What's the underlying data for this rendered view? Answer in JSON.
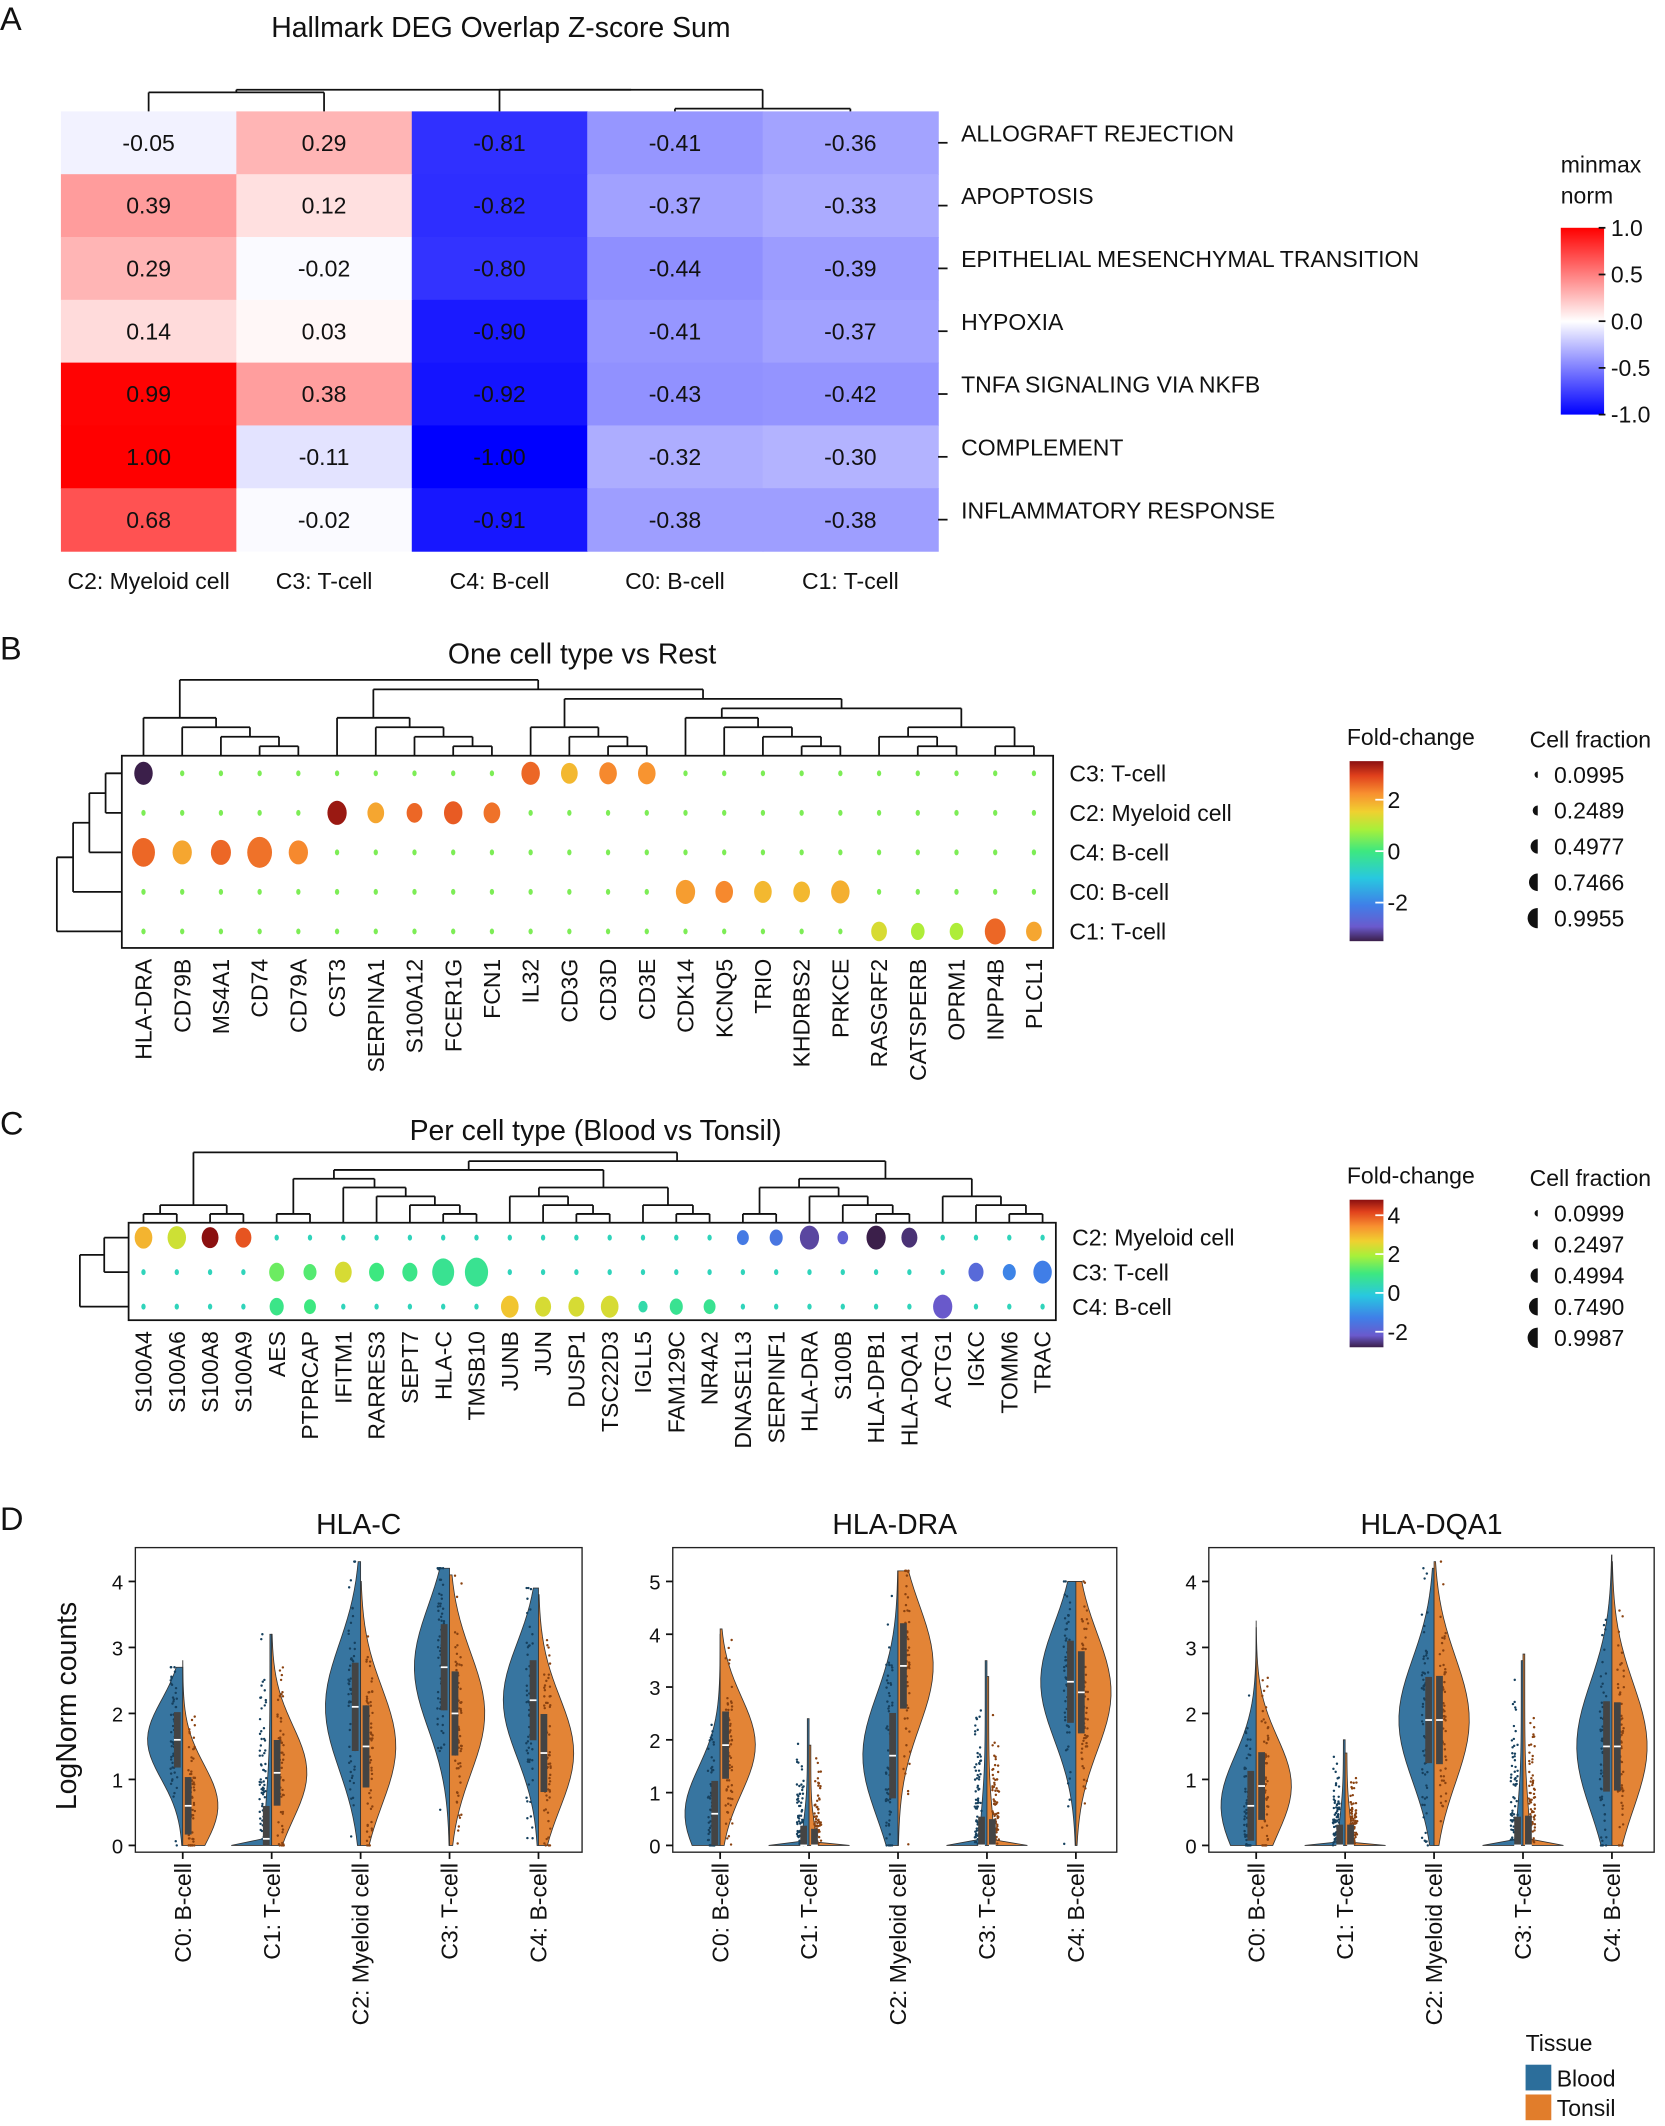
{
  "panel_letters": [
    "A",
    "B",
    "C",
    "D"
  ],
  "chart_data": [
    {
      "type": "heatmap",
      "title": "Hallmark DEG  Overlap Z-score Sum",
      "columns": [
        "C2:  Myeloid cell",
        "C3: T-cell",
        "C4: B-cell",
        "C0: B-cell",
        "C1: T-cell"
      ],
      "rows": [
        "ALLOGRAFT REJECTION",
        "APOPTOSIS",
        "EPITHELIAL MESENCHYMAL TRANSITION",
        "HYPOXIA",
        "TNFA SIGNALING VIA NKFB",
        "COMPLEMENT",
        "INFLAMMATORY RESPONSE"
      ],
      "values": [
        [
          "-0.05",
          "0.29",
          "-0.81",
          "-0.41",
          "-0.36"
        ],
        [
          "0.39",
          "0.12",
          "-0.82",
          "-0.37",
          "-0.33"
        ],
        [
          "0.29",
          "-0.02",
          "-0.80",
          "-0.44",
          "-0.39"
        ],
        [
          "0.14",
          "0.03",
          "-0.90",
          "-0.41",
          "-0.37"
        ],
        [
          "0.99",
          "0.38",
          "-0.92",
          "-0.43",
          "-0.42"
        ],
        [
          "1.00",
          "-0.11",
          "-1.00",
          "-0.32",
          "-0.30"
        ],
        [
          "0.68",
          "-0.02",
          "-0.91",
          "-0.38",
          "-0.38"
        ]
      ],
      "colorbar": {
        "title_lines": [
          "minmax",
          "norm"
        ],
        "ticks": [
          "1.0",
          "0.5",
          "0.0",
          "-0.5",
          "-1.0"
        ],
        "range": [
          -1,
          1
        ],
        "low_color": "#0000ff",
        "mid_color": "#ffffff",
        "high_color": "#ff0000"
      }
    },
    {
      "type": "dotplot",
      "title": "One cell type vs Rest",
      "genes": [
        "HLA-DRA",
        "CD79B",
        "MS4A1",
        "CD74",
        "CD79A",
        "CST3",
        "SERPINA1",
        "S100A12",
        "FCER1G",
        "FCN1",
        "IL32",
        "CD3G",
        "CD3D",
        "CD3E",
        "CDK14",
        "KCNQ5",
        "TRIO",
        "KHDRBS2",
        "PRKCE",
        "RASGRF2",
        "CATSPERB",
        "OPRM1",
        "INPP4B",
        "PLCL1"
      ],
      "groups": [
        "C3:  T-cell",
        "C2:  Myeloid cell",
        "C4:  B-cell",
        "C0:  B-cell",
        "C1:  T-cell"
      ],
      "background": {
        "fold_change": 0.5,
        "fraction": 0.03
      },
      "highlights": [
        {
          "group": 0,
          "gene": "HLA-DRA",
          "fold_change": -3.5,
          "fraction": 0.55
        },
        {
          "group": 0,
          "gene": "IL32",
          "fold_change": 2.6,
          "fraction": 0.55
        },
        {
          "group": 0,
          "gene": "CD3G",
          "fold_change": 1.8,
          "fraction": 0.45
        },
        {
          "group": 0,
          "gene": "CD3D",
          "fold_change": 2.3,
          "fraction": 0.5
        },
        {
          "group": 0,
          "gene": "CD3E",
          "fold_change": 2.2,
          "fraction": 0.5
        },
        {
          "group": 1,
          "gene": "CST3",
          "fold_change": 3.4,
          "fraction": 0.6
        },
        {
          "group": 1,
          "gene": "SERPINA1",
          "fold_change": 2.0,
          "fraction": 0.45
        },
        {
          "group": 1,
          "gene": "S100A12",
          "fold_change": 2.6,
          "fraction": 0.4
        },
        {
          "group": 1,
          "gene": "FCER1G",
          "fold_change": 2.7,
          "fraction": 0.55
        },
        {
          "group": 1,
          "gene": "FCN1",
          "fold_change": 2.5,
          "fraction": 0.45
        },
        {
          "group": 2,
          "gene": "HLA-DRA",
          "fold_change": 2.6,
          "fraction": 0.85
        },
        {
          "group": 2,
          "gene": "CD79B",
          "fold_change": 2.0,
          "fraction": 0.6
        },
        {
          "group": 2,
          "gene": "MS4A1",
          "fold_change": 2.6,
          "fraction": 0.65
        },
        {
          "group": 2,
          "gene": "CD74",
          "fold_change": 2.5,
          "fraction": 0.99
        },
        {
          "group": 2,
          "gene": "CD79A",
          "fold_change": 2.3,
          "fraction": 0.6
        },
        {
          "group": 3,
          "gene": "CDK14",
          "fold_change": 2.1,
          "fraction": 0.6
        },
        {
          "group": 3,
          "gene": "KCNQ5",
          "fold_change": 2.3,
          "fraction": 0.5
        },
        {
          "group": 3,
          "gene": "TRIO",
          "fold_change": 1.8,
          "fraction": 0.5
        },
        {
          "group": 3,
          "gene": "KHDRBS2",
          "fold_change": 1.8,
          "fraction": 0.45
        },
        {
          "group": 3,
          "gene": "PRKCE",
          "fold_change": 1.9,
          "fraction": 0.55
        },
        {
          "group": 4,
          "gene": "RASGRF2",
          "fold_change": 1.3,
          "fraction": 0.4
        },
        {
          "group": 4,
          "gene": "CATSPERB",
          "fold_change": 0.9,
          "fraction": 0.3
        },
        {
          "group": 4,
          "gene": "OPRM1",
          "fold_change": 0.9,
          "fraction": 0.3
        },
        {
          "group": 4,
          "gene": "INPP4B",
          "fold_change": 2.6,
          "fraction": 0.7
        },
        {
          "group": 4,
          "gene": "PLCL1",
          "fold_change": 2.0,
          "fraction": 0.4
        }
      ],
      "colorbar": {
        "title": "Fold-change",
        "ticks": [
          "2",
          "0",
          "-2"
        ],
        "range": [
          -3.5,
          3.5
        ]
      },
      "size_legend": {
        "title": "Cell fraction",
        "entries": [
          "0.0995",
          "0.2489",
          "0.4977",
          "0.7466",
          "0.9955"
        ]
      }
    },
    {
      "type": "dotplot",
      "title": "Per cell type (Blood vs Tonsil)",
      "genes": [
        "S100A4",
        "S100A6",
        "S100A8",
        "S100A9",
        "AES",
        "PTPRCAP",
        "IFITM1",
        "RARRES3",
        "SEPT7",
        "HLA-C",
        "TMSB10",
        "JUNB",
        "JUN",
        "DUSP1",
        "TSC22D3",
        "IGLL5",
        "FAM129C",
        "NR4A2",
        "DNASE1L3",
        "SERPINF1",
        "HLA-DRA",
        "S100B",
        "HLA-DPB1",
        "HLA-DQA1",
        "ACTG1",
        "IGKC",
        "TOMM6",
        "TRAC"
      ],
      "groups": [
        "C2: Myeloid cell",
        "C3: T-cell",
        "C4:  B-cell"
      ],
      "background": {
        "fold_change": 0.3,
        "fraction": 0.03
      },
      "highlights": [
        {
          "group": 0,
          "gene": "S100A4",
          "fold_change": 3.0,
          "fraction": 0.55
        },
        {
          "group": 0,
          "gene": "S100A6",
          "fold_change": 2.3,
          "fraction": 0.6
        },
        {
          "group": 0,
          "gene": "S100A8",
          "fold_change": 4.8,
          "fraction": 0.5
        },
        {
          "group": 0,
          "gene": "S100A9",
          "fold_change": 4.0,
          "fraction": 0.45
        },
        {
          "group": 0,
          "gene": "DNASE1L3",
          "fold_change": -1.4,
          "fraction": 0.25
        },
        {
          "group": 0,
          "gene": "SERPINF1",
          "fold_change": -1.5,
          "fraction": 0.3
        },
        {
          "group": 0,
          "gene": "HLA-DRA",
          "fold_change": -2.4,
          "fraction": 0.65
        },
        {
          "group": 0,
          "gene": "S100B",
          "fold_change": -2.0,
          "fraction": 0.2
        },
        {
          "group": 0,
          "gene": "HLA-DPB1",
          "fold_change": -2.9,
          "fraction": 0.65
        },
        {
          "group": 0,
          "gene": "HLA-DQA1",
          "fold_change": -2.6,
          "fraction": 0.45
        },
        {
          "group": 1,
          "gene": "AES",
          "fold_change": 1.4,
          "fraction": 0.4
        },
        {
          "group": 1,
          "gene": "PTPRCAP",
          "fold_change": 1.2,
          "fraction": 0.3
        },
        {
          "group": 1,
          "gene": "IFITM1",
          "fold_change": 2.4,
          "fraction": 0.5
        },
        {
          "group": 1,
          "gene": "RARRES3",
          "fold_change": 1.0,
          "fraction": 0.4
        },
        {
          "group": 1,
          "gene": "SEPT7",
          "fold_change": 0.9,
          "fraction": 0.4
        },
        {
          "group": 1,
          "gene": "HLA-C",
          "fold_change": 0.8,
          "fraction": 0.85
        },
        {
          "group": 1,
          "gene": "TMSB10",
          "fold_change": 0.8,
          "fraction": 0.95
        },
        {
          "group": 1,
          "gene": "IGKC",
          "fold_change": -1.8,
          "fraction": 0.4
        },
        {
          "group": 1,
          "gene": "TOMM6",
          "fold_change": -1.2,
          "fraction": 0.3
        },
        {
          "group": 1,
          "gene": "TRAC",
          "fold_change": -1.3,
          "fraction": 0.6
        },
        {
          "group": 2,
          "gene": "AES",
          "fold_change": 0.9,
          "fraction": 0.35
        },
        {
          "group": 2,
          "gene": "PTPRCAP",
          "fold_change": 1.0,
          "fraction": 0.25
        },
        {
          "group": 2,
          "gene": "JUNB",
          "fold_change": 2.8,
          "fraction": 0.55
        },
        {
          "group": 2,
          "gene": "JUN",
          "fold_change": 2.4,
          "fraction": 0.45
        },
        {
          "group": 2,
          "gene": "DUSP1",
          "fold_change": 2.4,
          "fraction": 0.45
        },
        {
          "group": 2,
          "gene": "TSC22D3",
          "fold_change": 2.4,
          "fraction": 0.55
        },
        {
          "group": 2,
          "gene": "IGLL5",
          "fold_change": 0.5,
          "fraction": 0.15
        },
        {
          "group": 2,
          "gene": "FAM129C",
          "fold_change": 0.8,
          "fraction": 0.3
        },
        {
          "group": 2,
          "gene": "NR4A2",
          "fold_change": 0.8,
          "fraction": 0.25
        },
        {
          "group": 2,
          "gene": "ACTG1",
          "fold_change": -2.2,
          "fraction": 0.65
        }
      ],
      "colorbar": {
        "title": "Fold-change",
        "ticks": [
          "4",
          "2",
          "0",
          "-2"
        ],
        "range": [
          -2.8,
          4.8
        ]
      },
      "size_legend": {
        "title": "Cell fraction",
        "entries": [
          "0.0999",
          "0.2497",
          "0.4994",
          "0.7490",
          "0.9987"
        ]
      }
    },
    {
      "type": "violin",
      "ylabel": "LogNorm counts",
      "categories": [
        "C0:  B-cell",
        "C1:  T-cell",
        "C2:  Myeloid cell",
        "C3:  T-cell",
        "C4:  B-cell"
      ],
      "legend": {
        "title": "Tissue",
        "entries": [
          {
            "name": "Blood",
            "color": "#2c6e9b"
          },
          {
            "name": "Tonsil",
            "color": "#e17d2b"
          }
        ]
      },
      "plots": [
        {
          "title": "HLA-C",
          "ylim": [
            0,
            4.3
          ],
          "yticks": [
            "0",
            "1",
            "2",
            "3",
            "4"
          ],
          "blood": [
            {
              "median": 1.6,
              "max": 2.7
            },
            {
              "median": 0.1,
              "max": 3.2
            },
            {
              "median": 2.1,
              "max": 4.3
            },
            {
              "median": 2.7,
              "max": 4.2
            },
            {
              "median": 2.2,
              "max": 3.9
            }
          ],
          "tonsil": [
            {
              "median": 0.6,
              "max": 2.8
            },
            {
              "median": 1.1,
              "max": 3.2
            },
            {
              "median": 1.5,
              "max": 4.0
            },
            {
              "median": 2.0,
              "max": 4.1
            },
            {
              "median": 1.4,
              "max": 3.8
            }
          ]
        },
        {
          "title": "HLA-DRA",
          "ylim": [
            0,
            5.3
          ],
          "yticks": [
            "0",
            "1",
            "2",
            "3",
            "4",
            "5"
          ],
          "blood": [
            {
              "median": 0.6,
              "max": 4.0
            },
            {
              "median": 0.0,
              "max": 2.4
            },
            {
              "median": 1.7,
              "max": 5.2
            },
            {
              "median": 0.0,
              "max": 3.5
            },
            {
              "median": 3.1,
              "max": 5.0
            }
          ],
          "tonsil": [
            {
              "median": 1.9,
              "max": 4.1
            },
            {
              "median": 0.0,
              "max": 1.9
            },
            {
              "median": 3.4,
              "max": 5.2
            },
            {
              "median": 0.0,
              "max": 3.2
            },
            {
              "median": 2.9,
              "max": 5.0
            }
          ]
        },
        {
          "title": "HLA-DQA1",
          "ylim": [
            0,
            4.3
          ],
          "yticks": [
            "0",
            "1",
            "2",
            "3",
            "4"
          ],
          "blood": [
            {
              "median": 0.6,
              "max": 3.4
            },
            {
              "median": 0.0,
              "max": 1.6
            },
            {
              "median": 1.9,
              "max": 4.2
            },
            {
              "median": 0.0,
              "max": 2.8
            },
            {
              "median": 1.5,
              "max": 4.4
            }
          ],
          "tonsil": [
            {
              "median": 0.9,
              "max": 3.3
            },
            {
              "median": 0.0,
              "max": 1.4
            },
            {
              "median": 1.9,
              "max": 4.3
            },
            {
              "median": 0.0,
              "max": 2.9
            },
            {
              "median": 1.5,
              "max": 4.3
            }
          ]
        }
      ]
    }
  ]
}
